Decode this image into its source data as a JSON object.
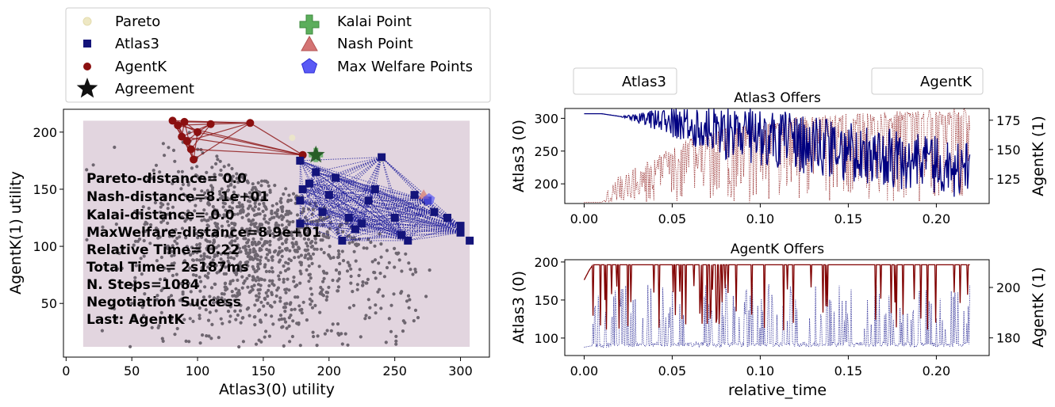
{
  "chart_data": [
    {
      "type": "scatter",
      "xlabel": "Atlas3(0) utility",
      "ylabel": "AgentK(1) utility",
      "xlim": [
        -2,
        322
      ],
      "ylim": [
        3,
        220
      ],
      "xticks": [
        0,
        50,
        100,
        150,
        200,
        250,
        300
      ],
      "yticks": [
        50,
        100,
        150,
        200
      ],
      "outcome_region": {
        "x": [
          13,
          307
        ],
        "y": [
          12,
          210
        ]
      },
      "legend": {
        "placement": "above-left",
        "entries": [
          {
            "key": "pareto",
            "label": "Pareto"
          },
          {
            "key": "atlas3",
            "label": "Atlas3"
          },
          {
            "key": "agentk",
            "label": "AgentK"
          },
          {
            "key": "agreement",
            "label": "Agreement"
          },
          {
            "key": "kalai",
            "label": "Kalai Point"
          },
          {
            "key": "nash",
            "label": "Nash Point"
          },
          {
            "key": "maxwelfare",
            "label": "Max Welfare Points"
          }
        ]
      },
      "annotation": [
        "Pareto-distance=  0.0",
        "Nash-distance=8.1e+01",
        "Kalai-distance=  0.0",
        "MaxWelfare-distance=8.9e+01",
        "Relative Time= 0.22",
        "Total Time= 2s187ms",
        "N. Steps=1084",
        "Negotiation Success",
        "Last: AgentK"
      ],
      "special_points": {
        "agreement": [
          190,
          180
        ],
        "kalai": [
          190,
          180
        ],
        "nash": [
          272,
          145
        ],
        "maxwelfare": [
          276,
          141
        ]
      },
      "pareto": [
        [
          81,
          210
        ],
        [
          90,
          209
        ],
        [
          140,
          208
        ],
        [
          172,
          195
        ],
        [
          190,
          180
        ],
        [
          240,
          176
        ],
        [
          272,
          145
        ],
        [
          276,
          141
        ],
        [
          300,
          118
        ],
        [
          307,
          105
        ]
      ],
      "atlas3_offers": [
        [
          307,
          105
        ],
        [
          300,
          112
        ],
        [
          300,
          118
        ],
        [
          290,
          125
        ],
        [
          280,
          130
        ],
        [
          275,
          140
        ],
        [
          265,
          145
        ],
        [
          260,
          105
        ],
        [
          255,
          110
        ],
        [
          250,
          125
        ],
        [
          240,
          178
        ],
        [
          235,
          150
        ],
        [
          230,
          140
        ],
        [
          225,
          120
        ],
        [
          220,
          115
        ],
        [
          215,
          125
        ],
        [
          210,
          105
        ],
        [
          205,
          160
        ],
        [
          200,
          145
        ],
        [
          195,
          130
        ],
        [
          190,
          165
        ],
        [
          185,
          155
        ],
        [
          180,
          150
        ],
        [
          178,
          140
        ],
        [
          178,
          120
        ],
        [
          178,
          175
        ]
      ],
      "agentk_offers": [
        [
          81,
          210
        ],
        [
          85,
          206
        ],
        [
          90,
          209
        ],
        [
          88,
          196
        ],
        [
          92,
          192
        ],
        [
          95,
          185
        ],
        [
          97,
          176
        ],
        [
          100,
          200
        ],
        [
          110,
          207
        ],
        [
          140,
          208
        ],
        [
          180,
          180
        ]
      ]
    },
    {
      "type": "line",
      "title": "Atlas3 Offers",
      "xlabel": "",
      "ylabel_left": "Atlas3 (0)",
      "ylabel_right": "AgentK (1)",
      "xlim": [
        -0.011,
        0.23
      ],
      "ylim_left": [
        170,
        315
      ],
      "ylim_right": [
        104,
        185
      ],
      "xticks": [
        0.0,
        0.05,
        0.1,
        0.15,
        0.2
      ],
      "yticks_left": [
        200,
        250,
        300
      ],
      "yticks_right": [
        125,
        150,
        175
      ],
      "legend_left": "Atlas3",
      "legend_right": "AgentK",
      "series": [
        {
          "axis": "left",
          "style": "solid",
          "color": "#000080",
          "x": [
            0.0,
            0.01,
            0.02,
            0.04,
            0.06,
            0.08,
            0.1,
            0.12,
            0.14,
            0.16,
            0.18,
            0.2,
            0.219
          ],
          "values": [
            307,
            307,
            303,
            298,
            290,
            282,
            272,
            262,
            253,
            245,
            237,
            228,
            218
          ]
        },
        {
          "axis": "right",
          "style": "dotted",
          "color": "#800000",
          "x": [
            0.0,
            0.01,
            0.015,
            0.02,
            0.04,
            0.06,
            0.08,
            0.1,
            0.12,
            0.14,
            0.16,
            0.18,
            0.2,
            0.219
          ],
          "values": [
            105,
            105,
            110,
            122,
            135,
            152,
            160,
            165,
            170,
            172,
            174,
            175,
            176,
            178
          ]
        }
      ]
    },
    {
      "type": "line",
      "title": "AgentK Offers",
      "xlabel": "relative_time",
      "ylabel_left": "Atlas3 (0)",
      "ylabel_right": "AgentK (1)",
      "xlim": [
        -0.011,
        0.23
      ],
      "ylim_left": [
        77,
        203
      ],
      "ylim_right": [
        173,
        211
      ],
      "xticks": [
        0.0,
        0.05,
        0.1,
        0.15,
        0.2
      ],
      "yticks_left": [
        100,
        150,
        200
      ],
      "yticks_right": [
        180,
        200
      ],
      "series": [
        {
          "axis": "right",
          "style": "solid",
          "color": "#800000",
          "x": [
            0.0,
            0.003,
            0.005,
            0.05,
            0.1,
            0.15,
            0.2,
            0.219
          ],
          "values": [
            203,
            207,
            209,
            209,
            209,
            209,
            209,
            209
          ]
        },
        {
          "axis": "left",
          "style": "dotted",
          "color": "#000080",
          "x": [
            0.0,
            0.005,
            0.05,
            0.1,
            0.15,
            0.2,
            0.219
          ],
          "values": [
            88,
            90,
            92,
            91,
            92,
            91,
            92
          ]
        }
      ]
    }
  ]
}
